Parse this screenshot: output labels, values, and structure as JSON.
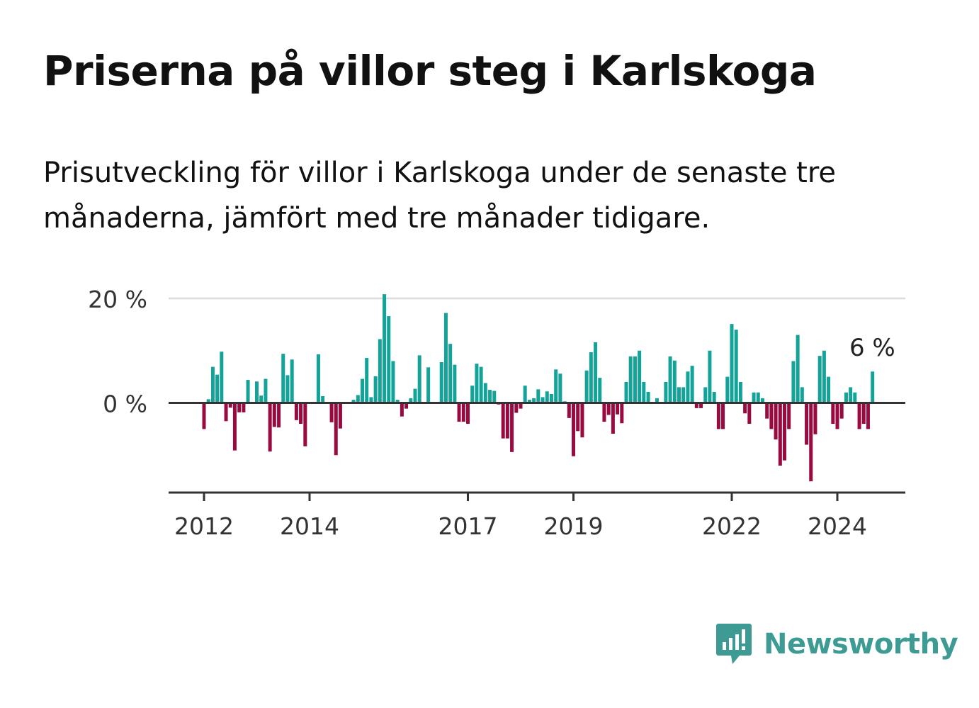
{
  "title": "Priserna på villor steg i Karlskoga",
  "subtitle": "Prisutveckling för villor i Karlskoga under de senaste tre månaderna, jämfört med tre månader tidigare.",
  "brand": {
    "name": "Newsworthy",
    "color": "#3d9b94",
    "icon": "newsworthy-logo-icon"
  },
  "colors": {
    "positive": "#14a398",
    "negative": "#990a40",
    "grid": "#dcdcdc",
    "axis": "#333333"
  },
  "chart_data": {
    "type": "bar",
    "title": "Priserna på villor steg i Karlskoga",
    "ylabel": "",
    "xlabel": "",
    "y_unit": "%",
    "ylim": [
      -17,
      20
    ],
    "y_ticks": [
      {
        "value": 0,
        "label": "0 %"
      },
      {
        "value": 20,
        "label": "20 %"
      }
    ],
    "x_ticks": [
      "2012",
      "2014",
      "2017",
      "2019",
      "2022",
      "2024"
    ],
    "grid": true,
    "last_value_label": "6 %",
    "series": [
      {
        "values": [
          [
            2012.0,
            -5
          ],
          [
            2012.083,
            0.7
          ],
          [
            2012.167,
            6.9
          ],
          [
            2012.25,
            5.4
          ],
          [
            2012.333,
            9.8
          ],
          [
            2012.417,
            -3.5
          ],
          [
            2012.5,
            -0.9
          ],
          [
            2012.583,
            -9.1
          ],
          [
            2012.667,
            -1.8
          ],
          [
            2012.75,
            -1.8
          ],
          [
            2012.833,
            4.4
          ],
          [
            2012.917,
            0.1
          ],
          [
            2013.0,
            4.1
          ],
          [
            2013.083,
            1.4
          ],
          [
            2013.167,
            4.6
          ],
          [
            2013.25,
            -9.3
          ],
          [
            2013.333,
            -4.6
          ],
          [
            2013.417,
            -4.7
          ],
          [
            2013.5,
            9.4
          ],
          [
            2013.583,
            5.3
          ],
          [
            2013.667,
            8.3
          ],
          [
            2013.75,
            -3.3
          ],
          [
            2013.833,
            -4
          ],
          [
            2013.917,
            -8.3
          ],
          [
            2014.0,
            0
          ],
          [
            2014.083,
            -0.2
          ],
          [
            2014.167,
            9.3
          ],
          [
            2014.25,
            1.3
          ],
          [
            2014.333,
            0
          ],
          [
            2014.417,
            -3.7
          ],
          [
            2014.5,
            -10
          ],
          [
            2014.583,
            -4.9
          ],
          [
            2014.667,
            0
          ],
          [
            2014.75,
            0
          ],
          [
            2014.833,
            0.6
          ],
          [
            2014.917,
            1.5
          ],
          [
            2015.0,
            4.6
          ],
          [
            2015.083,
            8.6
          ],
          [
            2015.167,
            1.1
          ],
          [
            2015.25,
            5.1
          ],
          [
            2015.333,
            12.2
          ],
          [
            2015.417,
            20.8
          ],
          [
            2015.5,
            16.6
          ],
          [
            2015.583,
            8
          ],
          [
            2015.667,
            0.6
          ],
          [
            2015.75,
            -2.6
          ],
          [
            2015.833,
            -1.1
          ],
          [
            2015.917,
            0.9
          ],
          [
            2016.0,
            2.7
          ],
          [
            2016.083,
            9.1
          ],
          [
            2016.167,
            0.1
          ],
          [
            2016.25,
            6.8
          ],
          [
            2016.333,
            0
          ],
          [
            2016.417,
            0
          ],
          [
            2016.5,
            7.8
          ],
          [
            2016.583,
            17.2
          ],
          [
            2016.667,
            11.3
          ],
          [
            2016.75,
            7.3
          ],
          [
            2016.833,
            -3.6
          ],
          [
            2016.917,
            -3.6
          ],
          [
            2017.0,
            -4
          ],
          [
            2017.083,
            3.3
          ],
          [
            2017.167,
            7.5
          ],
          [
            2017.25,
            6.9
          ],
          [
            2017.333,
            3.8
          ],
          [
            2017.417,
            2.5
          ],
          [
            2017.5,
            2.3
          ],
          [
            2017.583,
            -0.3
          ],
          [
            2017.667,
            -6.8
          ],
          [
            2017.75,
            -6.8
          ],
          [
            2017.833,
            -9.4
          ],
          [
            2017.917,
            -1.9
          ],
          [
            2018.0,
            -1.1
          ],
          [
            2018.083,
            3.3
          ],
          [
            2018.167,
            0.6
          ],
          [
            2018.25,
            0.9
          ],
          [
            2018.333,
            2.6
          ],
          [
            2018.417,
            1.1
          ],
          [
            2018.5,
            2.2
          ],
          [
            2018.583,
            1.7
          ],
          [
            2018.667,
            6.4
          ],
          [
            2018.75,
            5.6
          ],
          [
            2018.833,
            0.3
          ],
          [
            2018.917,
            -2.9
          ],
          [
            2019.0,
            -10.2
          ],
          [
            2019.083,
            -5.4
          ],
          [
            2019.167,
            -6.6
          ],
          [
            2019.25,
            6.2
          ],
          [
            2019.333,
            9.7
          ],
          [
            2019.417,
            11.6
          ],
          [
            2019.5,
            4.8
          ],
          [
            2019.583,
            -3.6
          ],
          [
            2019.667,
            -2.3
          ],
          [
            2019.75,
            -5.9
          ],
          [
            2019.833,
            -2.2
          ],
          [
            2019.917,
            -3.9
          ],
          [
            2020.0,
            4
          ],
          [
            2020.083,
            8.9
          ],
          [
            2020.167,
            8.9
          ],
          [
            2020.25,
            10
          ],
          [
            2020.333,
            4
          ],
          [
            2020.417,
            2.1
          ],
          [
            2020.5,
            0
          ],
          [
            2020.583,
            0.9
          ],
          [
            2020.667,
            0
          ],
          [
            2020.75,
            4
          ],
          [
            2020.833,
            8.9
          ],
          [
            2020.917,
            8.1
          ],
          [
            2021.0,
            3
          ],
          [
            2021.083,
            3
          ],
          [
            2021.167,
            6
          ],
          [
            2021.25,
            7.1
          ],
          [
            2021.333,
            -1
          ],
          [
            2021.417,
            -1
          ],
          [
            2021.5,
            3
          ],
          [
            2021.583,
            10
          ],
          [
            2021.667,
            2.1
          ],
          [
            2021.75,
            -5
          ],
          [
            2021.833,
            -5
          ],
          [
            2021.917,
            5
          ],
          [
            2022.0,
            15.1
          ],
          [
            2022.083,
            14
          ],
          [
            2022.167,
            4
          ],
          [
            2022.25,
            -2
          ],
          [
            2022.333,
            -4
          ],
          [
            2022.417,
            2
          ],
          [
            2022.5,
            2
          ],
          [
            2022.583,
            0.9
          ],
          [
            2022.667,
            -3
          ],
          [
            2022.75,
            -5
          ],
          [
            2022.833,
            -7
          ],
          [
            2022.917,
            -12
          ],
          [
            2023.0,
            -11
          ],
          [
            2023.083,
            -5
          ],
          [
            2023.167,
            8
          ],
          [
            2023.25,
            13
          ],
          [
            2023.333,
            3
          ],
          [
            2023.417,
            -8
          ],
          [
            2023.5,
            -15
          ],
          [
            2023.583,
            -6
          ],
          [
            2023.667,
            9
          ],
          [
            2023.75,
            10
          ],
          [
            2023.833,
            5
          ],
          [
            2023.917,
            -4
          ],
          [
            2024.0,
            -5
          ],
          [
            2024.083,
            -3
          ],
          [
            2024.167,
            2
          ],
          [
            2024.25,
            3
          ],
          [
            2024.333,
            2
          ],
          [
            2024.417,
            -5
          ],
          [
            2024.5,
            -4
          ],
          [
            2024.583,
            -5
          ],
          [
            2024.667,
            6
          ]
        ]
      }
    ]
  }
}
